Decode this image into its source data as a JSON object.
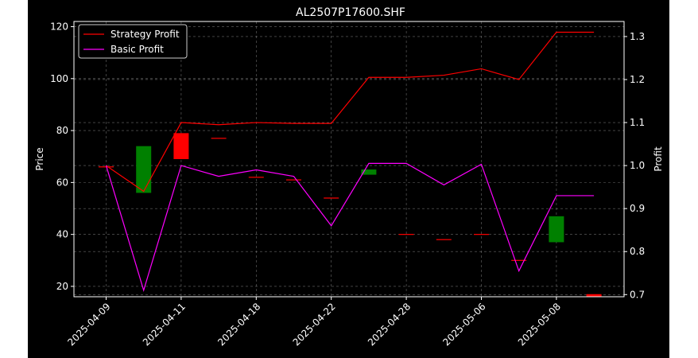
{
  "chart_data": {
    "type": "candlestick+line",
    "title": "AL2507P17600.SHF",
    "ylabel_left": "Price",
    "ylabel_right": "Profit",
    "ylim_left": [
      16,
      122
    ],
    "ylim_right": [
      0.695,
      1.335
    ],
    "yticks_left": [
      20,
      40,
      60,
      80,
      100,
      120
    ],
    "yticks_right": [
      0.7,
      0.8,
      0.9,
      1.0,
      1.1,
      1.2,
      1.3
    ],
    "x_dates": [
      "2025-04-09",
      "2025-04-10",
      "2025-04-11",
      "2025-04-14",
      "2025-04-18",
      "2025-04-21",
      "2025-04-22",
      "2025-04-23",
      "2025-04-28",
      "2025-04-29",
      "2025-05-06",
      "2025-05-07",
      "2025-05-08",
      "2025-05-09"
    ],
    "xtick_labels": [
      "2025-04-09",
      "2025-04-11",
      "2025-04-18",
      "2025-04-22",
      "2025-04-28",
      "2025-05-06",
      "2025-05-08"
    ],
    "xtick_indices": [
      0,
      2,
      4,
      6,
      8,
      10,
      12
    ],
    "grid": true,
    "legend_position": "top-left",
    "candles": [
      {
        "date": "2025-04-09",
        "open": 66,
        "close": 66
      },
      {
        "date": "2025-04-10",
        "open": 56,
        "close": 74
      },
      {
        "date": "2025-04-11",
        "open": 79,
        "close": 69
      },
      {
        "date": "2025-04-14",
        "open": 77,
        "close": 77
      },
      {
        "date": "2025-04-18",
        "open": 62,
        "close": 62
      },
      {
        "date": "2025-04-21",
        "open": 61,
        "close": 61
      },
      {
        "date": "2025-04-22",
        "open": 54,
        "close": 54
      },
      {
        "date": "2025-04-23",
        "open": 63,
        "close": 65
      },
      {
        "date": "2025-04-28",
        "open": 40,
        "close": 40
      },
      {
        "date": "2025-04-29",
        "open": 38,
        "close": 38
      },
      {
        "date": "2025-05-06",
        "open": 40,
        "close": 40
      },
      {
        "date": "2025-05-07",
        "open": 30,
        "close": 30
      },
      {
        "date": "2025-05-08",
        "open": 37,
        "close": 47
      },
      {
        "date": "2025-05-09",
        "open": 17,
        "close": 16
      }
    ],
    "series": [
      {
        "name": "Strategy Profit",
        "color": "#ff0000",
        "axis": "right",
        "values": [
          1.0,
          0.94,
          1.1,
          1.095,
          1.1,
          1.098,
          1.098,
          1.205,
          1.205,
          1.21,
          1.225,
          1.2,
          1.31,
          1.31
        ]
      },
      {
        "name": "Basic Profit",
        "color": "#ff00ff",
        "axis": "right",
        "values": [
          1.0,
          0.71,
          1.0,
          0.975,
          0.99,
          0.975,
          0.86,
          1.005,
          1.005,
          0.955,
          1.003,
          0.755,
          0.93,
          0.93
        ]
      }
    ],
    "up_color": "#008000",
    "down_color": "#ff0000"
  }
}
